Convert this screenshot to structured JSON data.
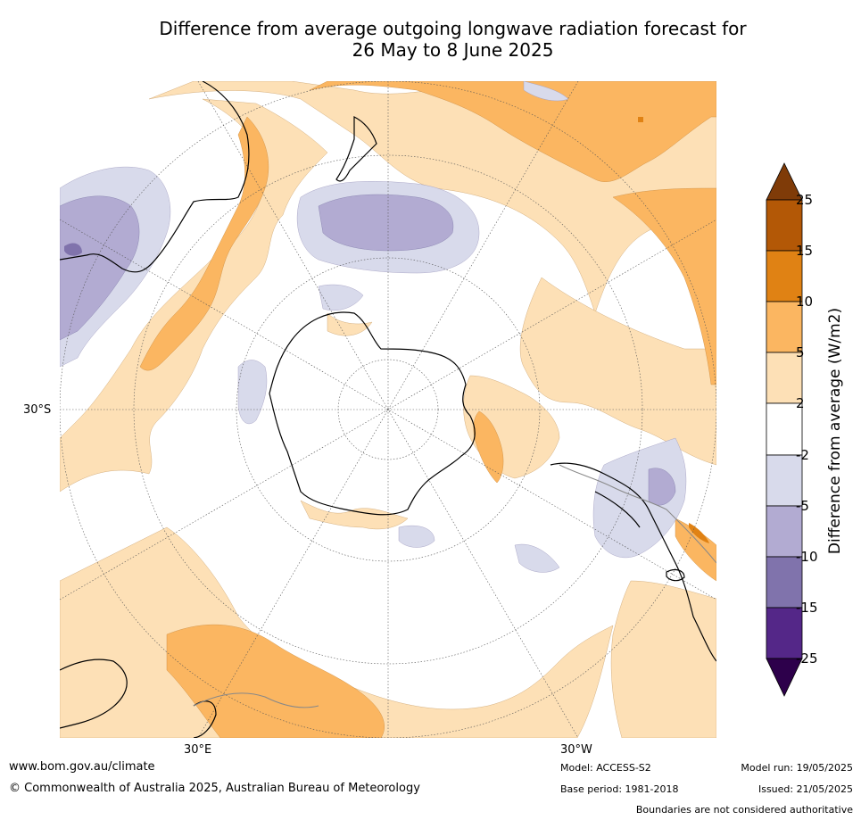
{
  "title_line1": "Difference from average outgoing longwave radiation forecast for",
  "title_line2": "26 May to 8 June 2025",
  "map": {
    "projection": "south-polar-stereographic",
    "lat_label": "30°S",
    "lon_labels": {
      "east": "30°E",
      "west": "30°W"
    },
    "colors": {
      "ocean_neutral": "#ffffff",
      "pos_2_5": "#fde0b6",
      "pos_5_10": "#fbb661",
      "pos_10_15": "#e08214",
      "pos_15_25": "#b35806",
      "pos_gt25": "#7f3b08",
      "neg_2_5": "#d8daeb",
      "neg_5_10": "#b2abd2",
      "neg_10_15": "#8073ac",
      "neg_15_25": "#542788",
      "neg_lt25": "#2d004b"
    }
  },
  "colorbar": {
    "label": "Difference from average (W/m2)",
    "ticks": [
      "25",
      "15",
      "10",
      "5",
      "2",
      "-2",
      "-5",
      "-10",
      "-15",
      "-25"
    ],
    "colors": [
      "#b35806",
      "#e08214",
      "#fbb661",
      "#fde0b6",
      "#ffffff",
      "#d8daeb",
      "#b2abd2",
      "#8073ac",
      "#542788"
    ],
    "extend_top_color": "#7f3b08",
    "extend_bottom_color": "#2d004b"
  },
  "footer": {
    "url": "www.bom.gov.au/climate",
    "copyright": "© Commonwealth of Australia 2025, Australian Bureau of Meteorology",
    "model": "Model: ACCESS-S2",
    "base_period": "Base period: 1981-2018",
    "model_run": "Model run: 19/05/2025",
    "issued": "Issued: 21/05/2025",
    "disclaimer": "Boundaries are not considered authoritative"
  }
}
